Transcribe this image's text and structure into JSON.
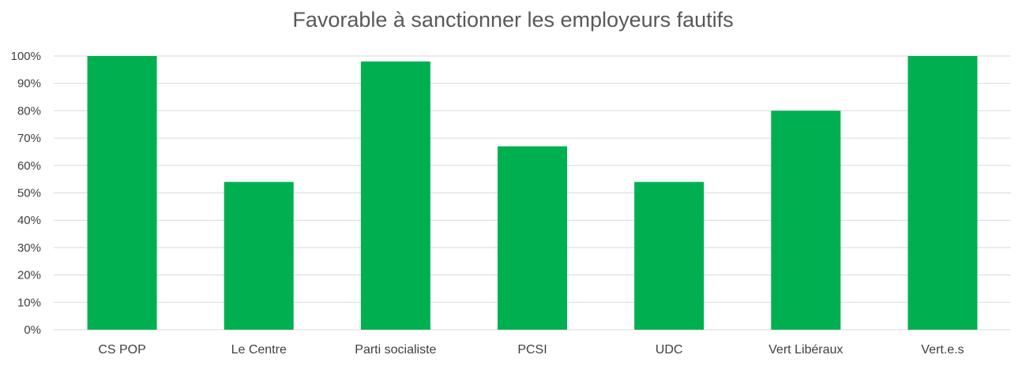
{
  "chart_data": {
    "type": "bar",
    "title": "Favorable à sanctionner les employeurs fautifs",
    "categories": [
      "CS POP",
      "Le Centre",
      "Parti socialiste",
      "PCSI",
      "UDC",
      "Vert Libéraux",
      "Vert.e.s"
    ],
    "values": [
      100,
      54,
      98,
      67,
      54,
      80,
      100
    ],
    "unit": "%",
    "ylim": [
      0,
      100
    ],
    "yticks": [
      "0%",
      "10%",
      "20%",
      "30%",
      "40%",
      "50%",
      "60%",
      "70%",
      "80%",
      "90%",
      "100%"
    ],
    "xlabel": "",
    "ylabel": "",
    "grid": true,
    "legend": "none",
    "colors": {
      "bar": "#00B050",
      "grid": "#D9D9D9",
      "text": "#404040",
      "title": "#595959"
    }
  }
}
